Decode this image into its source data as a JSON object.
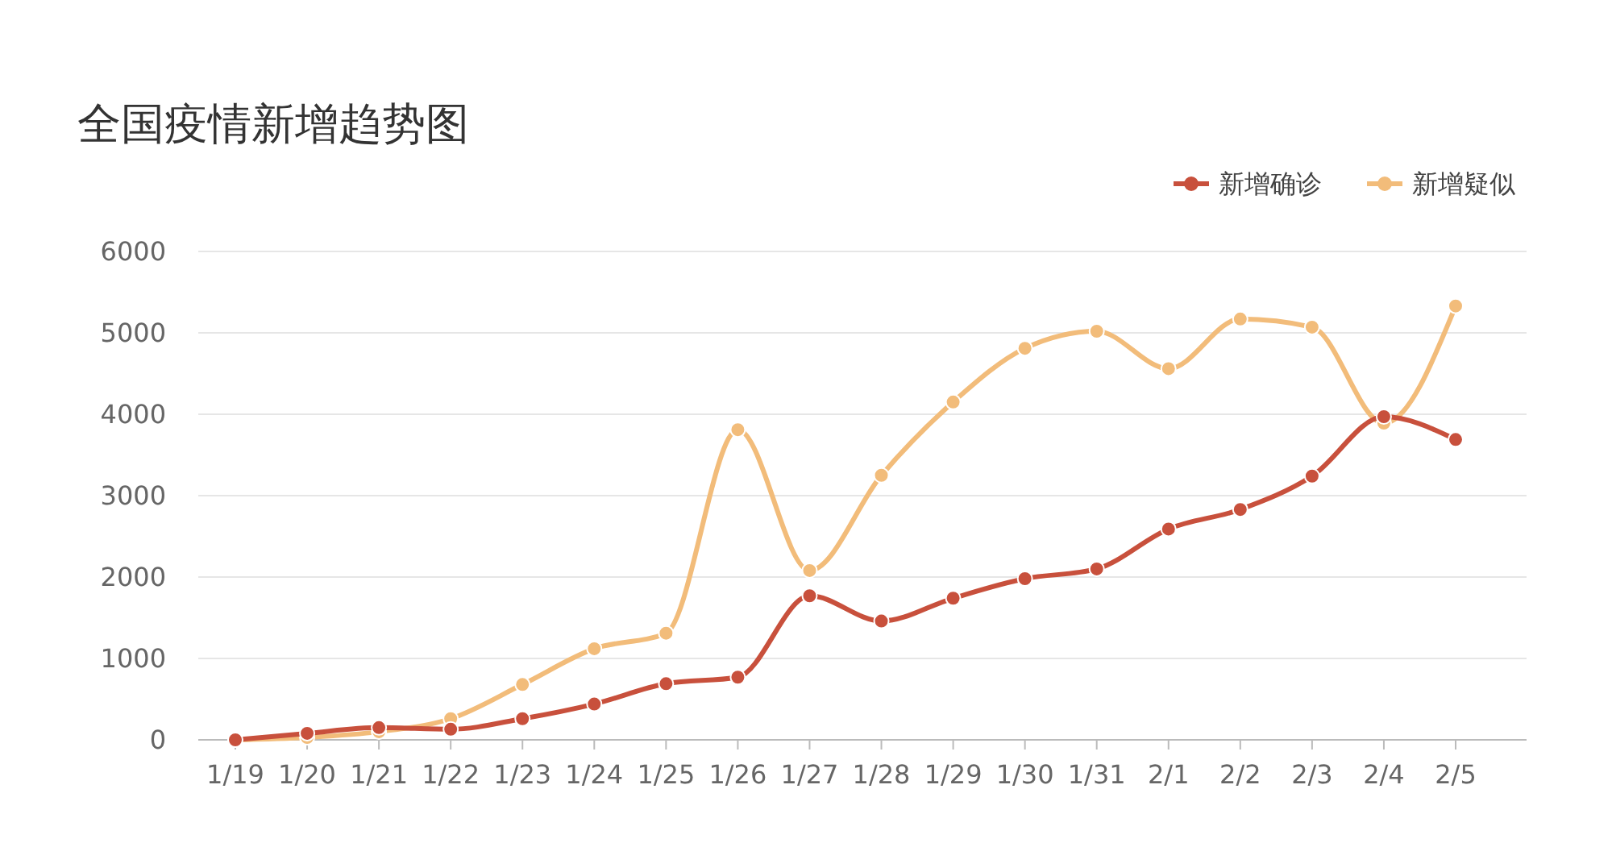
{
  "chart_data": {
    "type": "line",
    "title": "全国疫情新增趋势图",
    "categories": [
      "1/19",
      "1/20",
      "1/21",
      "1/22",
      "1/23",
      "1/24",
      "1/25",
      "1/26",
      "1/27",
      "1/28",
      "1/29",
      "1/30",
      "1/31",
      "2/1",
      "2/2",
      "2/3",
      "2/4",
      "2/5"
    ],
    "series": [
      {
        "name": "新增确诊",
        "color": "#c8503c",
        "values": [
          0,
          80,
          150,
          130,
          260,
          440,
          690,
          770,
          1770,
          1460,
          1740,
          1980,
          2100,
          2590,
          2830,
          3240,
          3970,
          3690
        ]
      },
      {
        "name": "新增疑似",
        "color": "#f2bc7a",
        "values": [
          0,
          30,
          100,
          260,
          680,
          1120,
          1310,
          3810,
          2080,
          3250,
          4150,
          4810,
          5020,
          4560,
          5170,
          5070,
          3890,
          5330
        ]
      }
    ],
    "ylim": [
      0,
      6000
    ],
    "yticks": [
      0,
      1000,
      2000,
      3000,
      4000,
      5000,
      6000
    ],
    "grid": "y",
    "legend": "top right",
    "marker": "circle",
    "line_style": "solid"
  }
}
